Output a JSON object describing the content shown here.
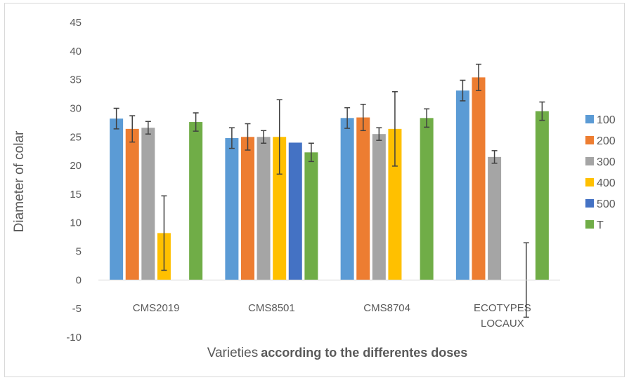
{
  "chart_data": {
    "type": "bar",
    "categories": [
      [
        "CMS2019"
      ],
      [
        "CMS8501"
      ],
      [
        "CMS8704"
      ],
      [
        "ECOTYPES",
        "LOCAUX"
      ]
    ],
    "series": [
      {
        "name": "100",
        "color": "#5b9bd5",
        "values": [
          28.2,
          24.8,
          28.3,
          33.1
        ],
        "errors": [
          1.8,
          1.8,
          1.8,
          1.8
        ]
      },
      {
        "name": "200",
        "color": "#ed7d31",
        "values": [
          26.4,
          25.0,
          28.4,
          35.4
        ],
        "errors": [
          2.3,
          2.3,
          2.3,
          2.3
        ]
      },
      {
        "name": "300",
        "color": "#a5a5a5",
        "values": [
          26.6,
          25.0,
          25.5,
          21.5
        ],
        "errors": [
          1.1,
          1.1,
          1.1,
          1.1
        ]
      },
      {
        "name": "400",
        "color": "#ffc000",
        "values": [
          8.2,
          25.0,
          26.4,
          0
        ],
        "errors": [
          6.5,
          6.5,
          6.5,
          6.5
        ]
      },
      {
        "name": "500",
        "color": "#4472c4",
        "values": [
          0,
          24.0,
          0,
          0
        ],
        "errors": [
          0,
          0,
          0,
          0
        ]
      },
      {
        "name": "T",
        "color": "#70ad47",
        "values": [
          27.6,
          22.3,
          28.3,
          29.5
        ],
        "errors": [
          1.6,
          1.6,
          1.6,
          1.6
        ]
      }
    ],
    "extra_error_bars": [
      {
        "category_index": 3,
        "series_index": 4,
        "value": 0,
        "error": 6.5
      }
    ],
    "ylim": [
      -10,
      45
    ],
    "yticks": [
      -10,
      -5,
      0,
      5,
      10,
      15,
      20,
      25,
      30,
      35,
      40,
      45
    ],
    "ylabel": "Diameter of colar",
    "xlabel_normal": "Varieties",
    "xlabel_bold": "according  to the differentes doses",
    "legend_position": "right",
    "grid": false
  }
}
